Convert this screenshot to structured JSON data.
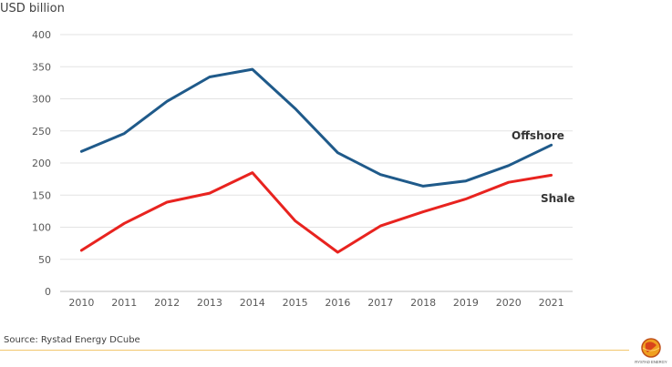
{
  "chart_data": {
    "type": "line",
    "unit_label": "USD billion",
    "categories": [
      "2010",
      "2011",
      "2012",
      "2013",
      "2014",
      "2015",
      "2016",
      "2017",
      "2018",
      "2019",
      "2020",
      "2021"
    ],
    "ylim": [
      0,
      400
    ],
    "yticks": [
      0,
      50,
      100,
      150,
      200,
      250,
      300,
      350,
      400
    ],
    "grid": true,
    "series": [
      {
        "name": "Offshore",
        "color": "#1f5a8a",
        "values": [
          218,
          246,
          296,
          334,
          346,
          285,
          216,
          182,
          164,
          172,
          196,
          228
        ]
      },
      {
        "name": "Shale",
        "color": "#e8231f",
        "values": [
          64,
          106,
          139,
          153,
          185,
          110,
          61,
          102,
          124,
          144,
          170,
          181
        ]
      }
    ]
  },
  "source": "Source: Rystad Energy DCube",
  "logo": {
    "text": "RYSTAD ENERGY",
    "icon": "rystad-globe-icon"
  }
}
